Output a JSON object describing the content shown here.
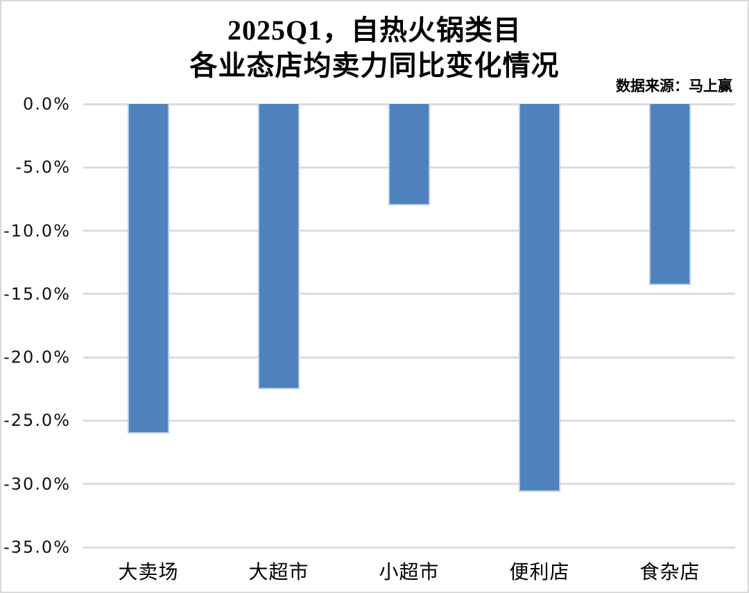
{
  "frame": {
    "background": "#ffffff",
    "border_color": "#d9d9d9"
  },
  "chart_data": {
    "type": "bar",
    "title_lines": [
      "2025Q1，自热火锅类目",
      "各业态店均卖力同比变化情况"
    ],
    "title": "2025Q1，自热火锅类目 各业态店均卖力同比变化情况",
    "source": "数据来源：马上赢",
    "categories": [
      "大卖场",
      "大超市",
      "小超市",
      "便利店",
      "食杂店"
    ],
    "values": [
      -26.0,
      -22.5,
      -8.0,
      -30.6,
      -14.3
    ],
    "unit": "%",
    "xlabel": "",
    "ylabel": "",
    "ylim": [
      -35,
      0
    ],
    "ytick_step": 5,
    "ytick_labels": [
      "0.0%",
      "-5.0%",
      "-10.0%",
      "-15.0%",
      "-20.0%",
      "-25.0%",
      "-30.0%",
      "-35.0%"
    ],
    "grid": true,
    "legend_position": "none",
    "bar_color": "#4f81bd",
    "bar_border_color": "#b3cbe8",
    "gridline_color": "#dcdcdc",
    "text_color": "#000000"
  }
}
